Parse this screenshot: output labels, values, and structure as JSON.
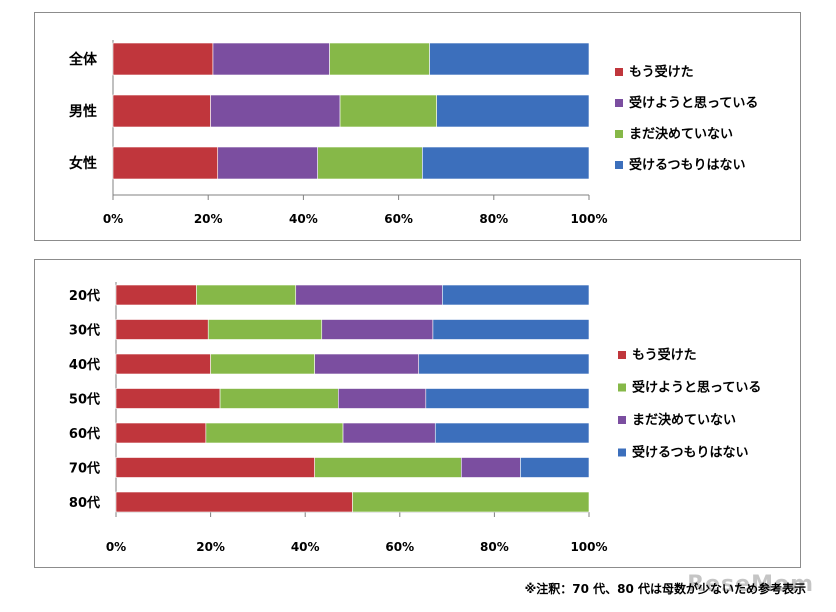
{
  "colors": {
    "red": "#c0363c",
    "purple": "#7b4ea0",
    "green": "#86b848",
    "blue": "#3c6fbc"
  },
  "chart_data": [
    {
      "type": "bar",
      "orientation": "horizontal",
      "stacked": true,
      "categories": [
        "全体",
        "男性",
        "女性"
      ],
      "series": [
        {
          "name": "もう受けた",
          "color": "#c0363c",
          "values": [
            21,
            20.5,
            22
          ]
        },
        {
          "name": "受けようと思っている",
          "color": "#7b4ea0",
          "values": [
            24.5,
            27.2,
            21
          ]
        },
        {
          "name": "まだ決めていない",
          "color": "#86b848",
          "values": [
            21,
            20.3,
            22
          ]
        },
        {
          "name": "受けるつもりはない",
          "color": "#3c6fbc",
          "values": [
            33.5,
            32,
            35
          ]
        }
      ],
      "xlim": [
        0,
        100
      ],
      "x_ticks": [
        "0%",
        "20%",
        "40%",
        "60%",
        "80%",
        "100%"
      ],
      "legend_position": "right"
    },
    {
      "type": "bar",
      "orientation": "horizontal",
      "stacked": true,
      "categories": [
        "20代",
        "30代",
        "40代",
        "50代",
        "60代",
        "70代",
        "80代"
      ],
      "series": [
        {
          "name": "もう受けた",
          "color": "#c0363c",
          "values": [
            17,
            19.5,
            20,
            22,
            19,
            42,
            50
          ]
        },
        {
          "name": "受けようと思っている",
          "color": "#86b848",
          "values": [
            21,
            24,
            22,
            25,
            29,
            31,
            50
          ]
        },
        {
          "name": "まだ決めていない",
          "color": "#7b4ea0",
          "values": [
            31,
            23.5,
            22,
            18.5,
            19.5,
            12.5,
            0
          ]
        },
        {
          "name": "受けるつもりはない",
          "color": "#3c6fbc",
          "values": [
            31,
            33,
            36,
            34.5,
            32.5,
            14.5,
            0
          ]
        }
      ],
      "xlim": [
        0,
        100
      ],
      "x_ticks": [
        "0%",
        "20%",
        "40%",
        "60%",
        "80%",
        "100%"
      ],
      "legend_position": "right"
    }
  ],
  "note": "※注釈：70 代、80 代は母数が少ないため参考表示",
  "watermark": "ReseMom"
}
